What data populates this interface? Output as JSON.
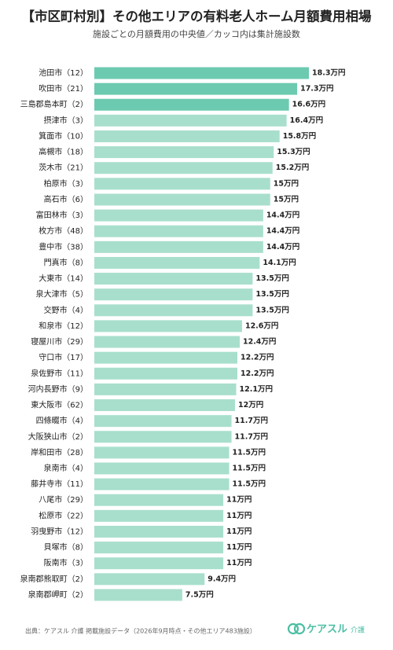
{
  "chart_data": {
    "type": "barh",
    "title": "【市区町村別】その他エリアの有料老人ホーム月額費用相場",
    "subtitle": "施設ごとの月額費用の中央値／カッコ内は集計施設数",
    "categories": [
      "池田市（12）",
      "吹田市（21）",
      "三島郡島本町（2）",
      "摂津市（3）",
      "箕面市（10）",
      "高槻市（18）",
      "茨木市（21）",
      "柏原市（3）",
      "高石市（6）",
      "富田林市（3）",
      "枚方市（48）",
      "豊中市（38）",
      "門真市（8）",
      "大東市（14）",
      "泉大津市（5）",
      "交野市（4）",
      "和泉市（12）",
      "寝屋川市（29）",
      "守口市（17）",
      "泉佐野市（11）",
      "河内長野市（9）",
      "東大阪市（62）",
      "四條畷市（4）",
      "大阪狭山市（2）",
      "岸和田市（28）",
      "泉南市（4）",
      "藤井寺市（11）",
      "八尾市（29）",
      "松原市（22）",
      "羽曳野市（12）",
      "貝塚市（8）",
      "阪南市（3）",
      "泉南郡熊取町（2）",
      "泉南郡岬町（2）"
    ],
    "values": [
      18.3,
      17.3,
      16.6,
      16.4,
      15.8,
      15.3,
      15.2,
      15,
      15,
      14.4,
      14.4,
      14.4,
      14.1,
      13.5,
      13.5,
      13.5,
      12.6,
      12.4,
      12.2,
      12.2,
      12.1,
      12,
      11.7,
      11.7,
      11.5,
      11.5,
      11.5,
      11,
      11,
      11,
      11,
      11,
      9.4,
      7.5
    ],
    "value_labels": [
      "18.3万円",
      "17.3万円",
      "16.6万円",
      "16.4万円",
      "15.8万円",
      "15.3万円",
      "15.2万円",
      "15万円",
      "15万円",
      "14.4万円",
      "14.4万円",
      "14.4万円",
      "14.1万円",
      "13.5万円",
      "13.5万円",
      "13.5万円",
      "12.6万円",
      "12.4万円",
      "12.2万円",
      "12.2万円",
      "12.1万円",
      "12万円",
      "11.7万円",
      "11.7万円",
      "11.5万円",
      "11.5万円",
      "11.5万円",
      "11万円",
      "11万円",
      "11万円",
      "11万円",
      "11万円",
      "9.4万円",
      "7.5万円"
    ],
    "colors": [
      "#6ccab0",
      "#6ccab0",
      "#6ccab0",
      "#a8dfcc",
      "#a8dfcc",
      "#a8dfcc",
      "#a8dfcc",
      "#a8dfcc",
      "#a8dfcc",
      "#a8dfcc",
      "#a8dfcc",
      "#a8dfcc",
      "#a8dfcc",
      "#a8dfcc",
      "#a8dfcc",
      "#a8dfcc",
      "#a8dfcc",
      "#a8dfcc",
      "#a8dfcc",
      "#a8dfcc",
      "#a8dfcc",
      "#a8dfcc",
      "#a8dfcc",
      "#a8dfcc",
      "#a8dfcc",
      "#a8dfcc",
      "#a8dfcc",
      "#a8dfcc",
      "#a8dfcc",
      "#a8dfcc",
      "#a8dfcc",
      "#a8dfcc",
      "#a8dfcc",
      "#a8dfcc"
    ],
    "source": "出典：ケアスル 介護 掲載施設データ（2026年9月時点・その他エリア483施設）",
    "logo": "ケアスル",
    "logo_sub": "介護"
  }
}
